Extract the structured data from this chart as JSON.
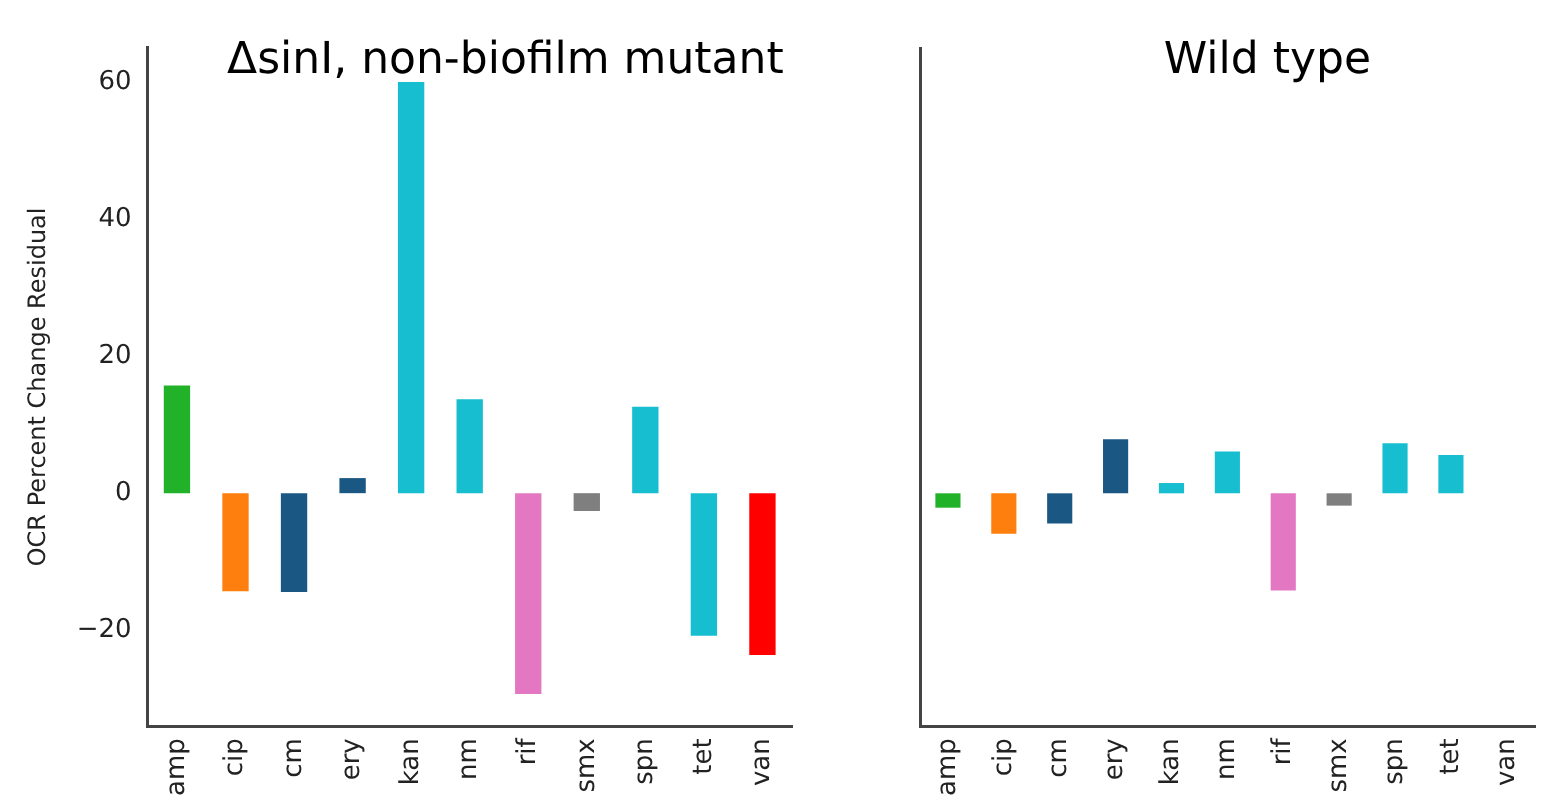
{
  "chart_data": [
    {
      "type": "bar",
      "title": "ΔsinI, non-biofilm mutant",
      "ylabel": "OCR Percent Change Residual",
      "categories": [
        "amp",
        "cip",
        "cm",
        "ery",
        "kan",
        "nm",
        "rif",
        "smx",
        "spn",
        "tet",
        "van"
      ],
      "values": [
        15.7,
        -14.3,
        -14.4,
        2.2,
        60,
        13.7,
        -29.3,
        -2.6,
        12.6,
        -20.8,
        -23.6
      ],
      "colors": [
        "#22b22a",
        "#ff7f0e",
        "#1a5783",
        "#1a5783",
        "#17becf",
        "#17becf",
        "#e377c2",
        "#7f7f7f",
        "#17becf",
        "#17becf",
        "#ff0000"
      ],
      "ylim": [
        -34,
        65
      ],
      "yticks": [
        -20,
        0,
        20,
        40,
        60
      ],
      "grid": false,
      "legend": false
    },
    {
      "type": "bar",
      "title": "Wild type",
      "categories": [
        "amp",
        "cip",
        "cm",
        "ery",
        "kan",
        "nm",
        "rif",
        "smx",
        "spn",
        "tet",
        "van"
      ],
      "values": [
        -2.1,
        -5.9,
        -4.4,
        7.9,
        1.5,
        6.1,
        -14.2,
        -1.8,
        7.3,
        5.6,
        null
      ],
      "colors": [
        "#22b22a",
        "#ff7f0e",
        "#1a5783",
        "#1a5783",
        "#17becf",
        "#17becf",
        "#e377c2",
        "#7f7f7f",
        "#17becf",
        "#17becf",
        "#ff0000"
      ],
      "ylim": [
        -34,
        65
      ],
      "tick_labels": "x",
      "grid": false,
      "legend": false
    }
  ]
}
